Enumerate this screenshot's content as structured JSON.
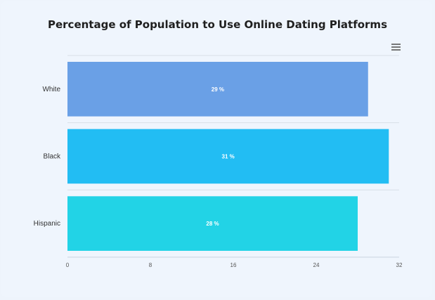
{
  "chart_data": {
    "type": "bar",
    "orientation": "horizontal",
    "title": "Percentage of Population to Use Online Dating Platforms",
    "categories": [
      "White",
      "Black",
      "Hispanic"
    ],
    "values": [
      29,
      31,
      28
    ],
    "data_labels": [
      "29 %",
      "31 %",
      "28 %"
    ],
    "colors": [
      "#6aa0e6",
      "#22bdf3",
      "#22d3e6"
    ],
    "xlim": [
      0,
      32
    ],
    "x_ticks": [
      "0",
      "8",
      "16",
      "24",
      "32"
    ],
    "grid": true
  },
  "toolbar": {
    "menu_icon": "hamburger-menu-icon"
  }
}
